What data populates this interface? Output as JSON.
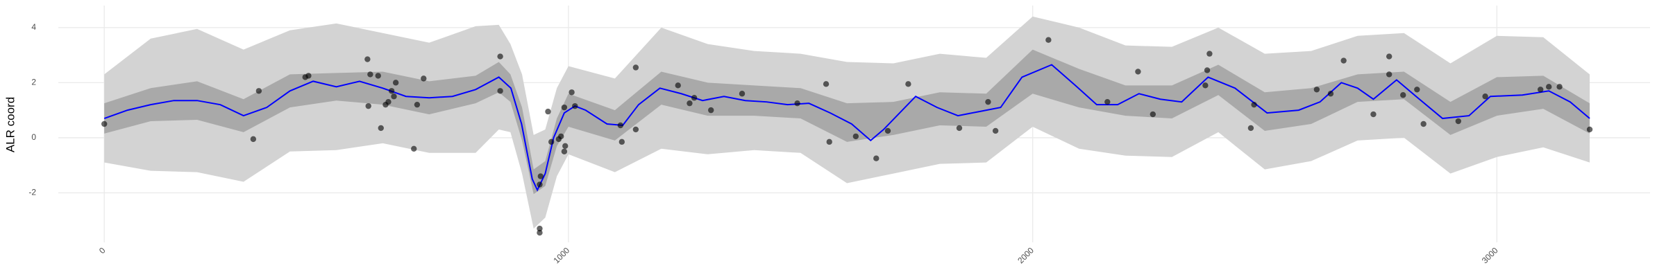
{
  "chart_data": {
    "type": "line",
    "ylabel": "ALR coord",
    "xlim": [
      -99,
      3330
    ],
    "ylim": [
      -3.8,
      4.8
    ],
    "xticks": [
      0,
      1000,
      2000,
      3000
    ],
    "yticks": [
      -2,
      0,
      2,
      4
    ],
    "grid": true,
    "band_x": [
      0,
      100,
      200,
      300,
      400,
      500,
      600,
      700,
      800,
      850,
      875,
      900,
      925,
      950,
      975,
      1000,
      1100,
      1200,
      1300,
      1400,
      1500,
      1600,
      1700,
      1800,
      1900,
      2000,
      2100,
      2200,
      2300,
      2400,
      2500,
      2600,
      2700,
      2800,
      2900,
      3000,
      3100,
      3200
    ],
    "bands": [
      {
        "color": "#d3d3d3",
        "lower": [
          -0.9,
          -1.2,
          -1.25,
          -1.6,
          -0.5,
          -0.45,
          -0.2,
          -0.55,
          -0.55,
          0.3,
          0.2,
          -1.3,
          -3.3,
          -2.9,
          -1.4,
          -0.6,
          -1.25,
          -0.4,
          -0.6,
          -0.45,
          -0.55,
          -1.65,
          -1.3,
          -0.95,
          -0.9,
          0.4,
          -0.4,
          -0.65,
          -0.7,
          0.2,
          -1.15,
          -0.85,
          -0.1,
          0.0,
          -1.3,
          -0.7,
          -0.35,
          -0.9
        ],
        "upper": [
          2.3,
          3.6,
          3.95,
          3.2,
          3.9,
          4.15,
          3.8,
          3.45,
          4.05,
          4.1,
          3.4,
          2.3,
          0.1,
          0.3,
          1.8,
          2.6,
          2.15,
          4.0,
          3.4,
          3.15,
          3.05,
          2.75,
          2.7,
          3.05,
          2.9,
          4.4,
          4.0,
          3.35,
          3.3,
          4.0,
          3.05,
          3.15,
          3.7,
          3.8,
          2.7,
          3.7,
          3.65,
          2.3
        ]
      },
      {
        "color": "#a9a9a9",
        "lower": [
          0.15,
          0.6,
          0.65,
          0.2,
          1.1,
          1.35,
          1.2,
          0.85,
          1.25,
          1.65,
          1.3,
          -0.1,
          -2.05,
          -1.75,
          -0.3,
          0.4,
          -0.1,
          1.2,
          0.8,
          0.8,
          0.7,
          -0.15,
          0.1,
          0.45,
          0.4,
          1.6,
          1.1,
          0.8,
          0.7,
          1.55,
          0.25,
          0.5,
          1.3,
          1.4,
          0.1,
          0.8,
          1.05,
          0.15
        ],
        "upper": [
          1.25,
          1.8,
          2.05,
          1.4,
          2.3,
          2.35,
          2.4,
          2.05,
          2.25,
          2.75,
          2.3,
          1.1,
          -1.15,
          -0.85,
          0.7,
          1.6,
          1.0,
          2.4,
          2.0,
          1.9,
          1.8,
          1.25,
          1.3,
          1.65,
          1.6,
          3.2,
          2.5,
          1.9,
          1.9,
          2.65,
          1.65,
          1.8,
          2.3,
          2.4,
          1.3,
          2.2,
          2.25,
          1.25
        ]
      }
    ],
    "series": [
      {
        "color": "#0000ff",
        "x": [
          0,
          50,
          100,
          150,
          200,
          250,
          300,
          350,
          400,
          450,
          500,
          550,
          600,
          650,
          700,
          750,
          800,
          850,
          876,
          899,
          922,
          933,
          950,
          968,
          991,
          1014,
          1037,
          1083,
          1117,
          1151,
          1197,
          1243,
          1289,
          1335,
          1381,
          1427,
          1472,
          1518,
          1564,
          1610,
          1651,
          1679,
          1748,
          1794,
          1839,
          1885,
          1931,
          1977,
          2041,
          2092,
          2138,
          2183,
          2229,
          2275,
          2321,
          2378,
          2436,
          2505,
          2573,
          2619,
          2665,
          2700,
          2734,
          2784,
          2826,
          2883,
          2940,
          2986,
          3055,
          3112,
          3158,
          3200
        ],
        "values": [
          0.7,
          1.0,
          1.2,
          1.35,
          1.35,
          1.2,
          0.8,
          1.1,
          1.7,
          2.05,
          1.85,
          2.05,
          1.8,
          1.5,
          1.45,
          1.5,
          1.75,
          2.2,
          1.8,
          0.5,
          -1.5,
          -1.9,
          -1.3,
          0,
          0.9,
          1.15,
          1.0,
          0.5,
          0.45,
          1.2,
          1.8,
          1.6,
          1.35,
          1.5,
          1.35,
          1.3,
          1.2,
          1.25,
          0.9,
          0.5,
          -0.1,
          0.3,
          1.5,
          1.1,
          0.8,
          0.95,
          1.1,
          2.2,
          2.65,
          1.9,
          1.2,
          1.2,
          1.6,
          1.4,
          1.3,
          2.2,
          1.8,
          0.9,
          1.0,
          1.3,
          2.0,
          1.8,
          1.4,
          2.1,
          1.5,
          0.7,
          0.8,
          1.5,
          1.55,
          1.7,
          1.3,
          0.7
        ]
      }
    ],
    "points": {
      "color": "#000000",
      "x": [
        0,
        321,
        333,
        433,
        440,
        567,
        573,
        590,
        569,
        596,
        606,
        612,
        619,
        624,
        628,
        667,
        674,
        688,
        853,
        853,
        938,
        938,
        940,
        938,
        956,
        963,
        979,
        984,
        991,
        993,
        991,
        1007,
        1014,
        1112,
        1115,
        1145,
        1145,
        1236,
        1261,
        1271,
        1307,
        1374,
        1493,
        1555,
        1562,
        1619,
        1663,
        1688,
        1732,
        1842,
        1904,
        1920,
        2034,
        2161,
        2227,
        2259,
        2372,
        2376,
        2381,
        2470,
        2477,
        2612,
        2642,
        2670,
        2734,
        2768,
        2768,
        2798,
        2828,
        2842,
        2917,
        2975,
        3094,
        3112,
        3135,
        3200
      ],
      "y": [
        0.5,
        -0.05,
        1.7,
        2.2,
        2.25,
        2.85,
        2.3,
        2.25,
        1.15,
        0.35,
        1.2,
        1.3,
        1.7,
        1.5,
        2.0,
        -0.4,
        1.2,
        2.15,
        2.95,
        1.7,
        -3.3,
        -3.45,
        -1.4,
        -1.7,
        0.95,
        -0.15,
        -0.05,
        0.05,
        -0.5,
        -0.3,
        1.1,
        1.65,
        1.15,
        0.45,
        -0.15,
        2.55,
        0.3,
        1.9,
        1.25,
        1.45,
        1.0,
        1.6,
        1.25,
        1.95,
        -0.15,
        0.05,
        -0.75,
        0.25,
        1.95,
        0.35,
        1.3,
        0.25,
        3.55,
        1.3,
        2.4,
        0.85,
        1.9,
        2.45,
        3.05,
        0.35,
        1.2,
        1.75,
        1.6,
        2.8,
        0.85,
        2.95,
        2.3,
        1.55,
        1.75,
        0.5,
        0.6,
        1.5,
        1.75,
        1.85,
        1.85,
        0.3
      ]
    }
  }
}
